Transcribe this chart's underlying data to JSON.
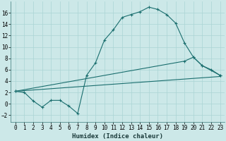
{
  "xlabel": "Humidex (Indice chaleur)",
  "background_color": "#cce8e8",
  "grid_color": "#aad4d4",
  "line_color": "#1a6e6e",
  "xlim": [
    -0.5,
    23.5
  ],
  "ylim": [
    -3.2,
    18.0
  ],
  "yticks": [
    -2,
    0,
    2,
    4,
    6,
    8,
    10,
    12,
    14,
    16
  ],
  "xticks": [
    0,
    1,
    2,
    3,
    4,
    5,
    6,
    7,
    8,
    9,
    10,
    11,
    12,
    13,
    14,
    15,
    16,
    17,
    18,
    19,
    20,
    21,
    22,
    23
  ],
  "curve1_x": [
    0,
    1,
    2,
    3,
    4,
    5,
    6,
    7,
    8,
    9,
    10,
    11,
    12,
    13,
    14,
    15,
    16,
    17,
    18,
    19,
    20,
    21,
    22,
    23
  ],
  "curve1_y": [
    2.2,
    2.0,
    0.5,
    -0.6,
    0.6,
    0.6,
    -0.4,
    -1.7,
    5.0,
    7.2,
    11.2,
    13.0,
    15.2,
    15.7,
    16.2,
    17.0,
    16.6,
    15.7,
    14.2,
    10.7,
    8.2,
    6.7,
    6.0,
    5.0
  ],
  "curve2_x": [
    0,
    19,
    20,
    21,
    23
  ],
  "curve2_y": [
    2.2,
    7.5,
    8.2,
    6.7,
    5.0
  ],
  "curve3_x": [
    0,
    23
  ],
  "curve3_y": [
    2.2,
    4.8
  ],
  "xlabel_fontsize": 6.5,
  "tick_fontsize": 5.5
}
